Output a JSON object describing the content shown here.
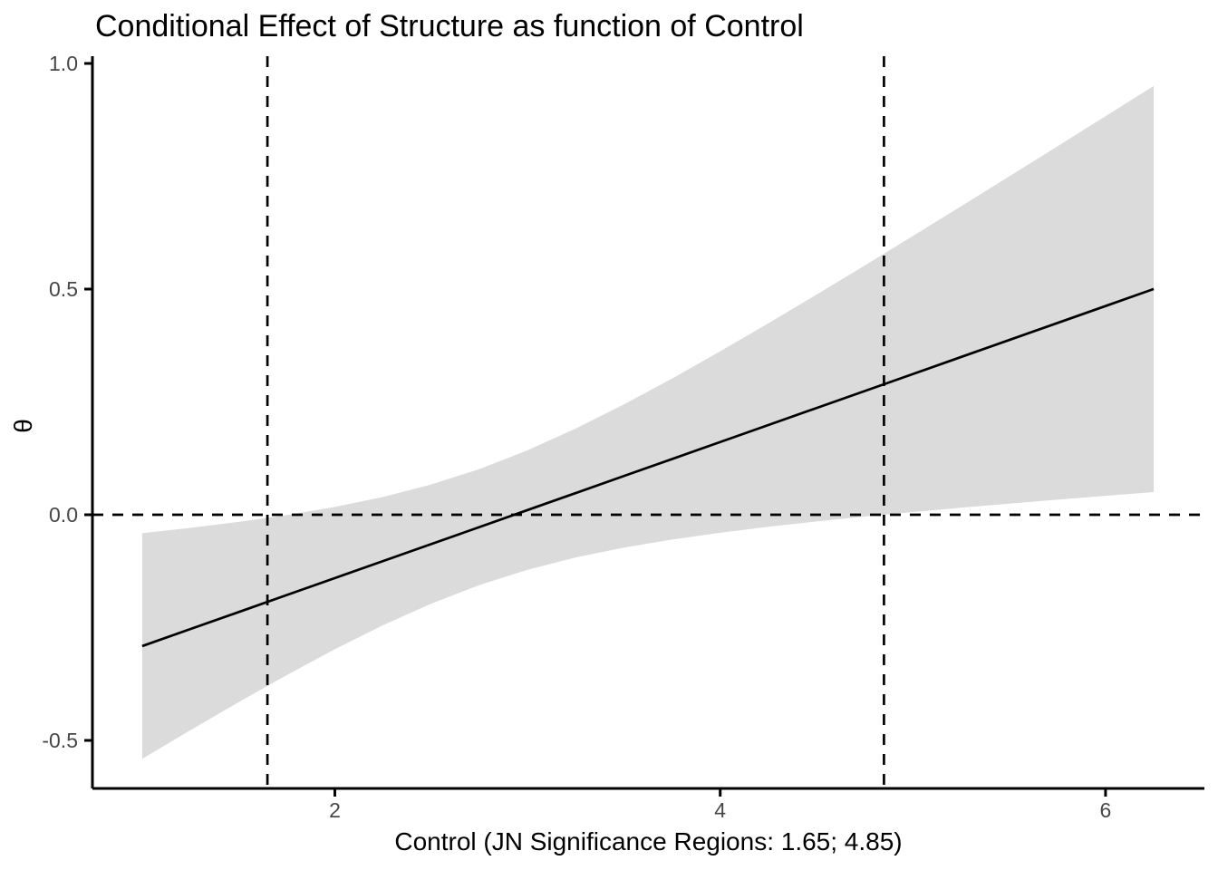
{
  "figure": {
    "background": "#FFFFFF"
  },
  "chart_data": {
    "type": "line",
    "title": "Conditional Effect of Structure as function of Control",
    "xlabel": "Control (JN Significance Regions: 1.65; 4.85)",
    "ylabel": "θ",
    "grid": false,
    "legend": false,
    "xlim": [
      0.74,
      6.51
    ],
    "ylim": [
      -0.61,
      1.02
    ],
    "x_ticks": [
      {
        "value": 2,
        "label": "2"
      },
      {
        "value": 4,
        "label": "4"
      },
      {
        "value": 6,
        "label": "6"
      }
    ],
    "y_ticks": [
      {
        "value": 1.0,
        "label": "1.0"
      },
      {
        "value": 0.5,
        "label": "0.5"
      },
      {
        "value": 0.0,
        "label": "0.0"
      },
      {
        "value": -0.5,
        "label": "-0.5"
      }
    ],
    "reference_lines": {
      "horizontal": 0.0,
      "vertical": [
        1.65,
        4.85
      ],
      "style": "dashed"
    },
    "jn_region_bounds": [
      1.65,
      4.85
    ],
    "x": [
      1.0,
      1.25,
      1.5,
      1.75,
      2.0,
      2.25,
      2.5,
      2.75,
      3.0,
      3.25,
      3.5,
      3.75,
      4.0,
      4.25,
      4.5,
      4.75,
      5.0,
      5.25,
      5.5,
      5.75,
      6.0,
      6.25
    ],
    "series": [
      {
        "name": "conditional-effect-fit",
        "values": [
          -0.291,
          -0.2533,
          -0.2157,
          -0.178,
          -0.1403,
          -0.1026,
          -0.065,
          -0.0273,
          0.0104,
          0.0481,
          0.0858,
          0.1234,
          0.1611,
          0.1988,
          0.2365,
          0.2741,
          0.3118,
          0.3495,
          0.3872,
          0.4248,
          0.4625,
          0.5002
        ]
      },
      {
        "name": "ci-lower",
        "values": [
          -0.541,
          -0.4775,
          -0.4155,
          -0.3553,
          -0.298,
          -0.2447,
          -0.197,
          -0.1558,
          -0.1219,
          -0.0947,
          -0.0729,
          -0.055,
          -0.0399,
          -0.0267,
          -0.0149,
          -0.0041,
          0.006,
          0.0155,
          0.0247,
          0.0334,
          0.0419,
          0.0502
        ]
      },
      {
        "name": "ci-upper",
        "values": [
          -0.041,
          -0.0291,
          -0.0159,
          -0.0007,
          0.0174,
          0.0395,
          0.067,
          0.1012,
          0.1427,
          0.1909,
          0.2444,
          0.3018,
          0.3621,
          0.4243,
          0.4878,
          0.5523,
          0.6176,
          0.6835,
          0.7497,
          0.8162,
          0.8831,
          0.9502
        ]
      }
    ],
    "colors": {
      "line": "#000000",
      "band": "#DBDBDB",
      "axis": "#000000",
      "tick_text": "#474747",
      "title_text": "#000000"
    }
  }
}
